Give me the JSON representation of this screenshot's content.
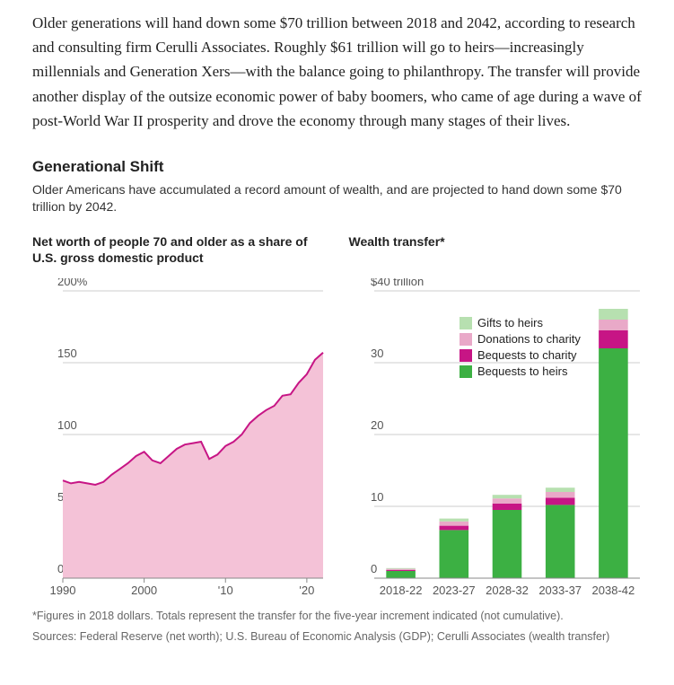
{
  "intro_text": "Older generations will hand down some $70 trillion between 2018 and 2042, according to research and consulting firm Cerulli Associates. Roughly $61 trillion will go to heirs—increasingly millennials and Generation Xers—with the balance going to philanthropy. The transfer will provide another display of the outsize economic power of baby boomers, who came of age during a wave of post-World War II prosperity and drove the economy through many stages of their lives.",
  "section": {
    "title": "Generational Shift",
    "sub": "Older Americans have accumulated a record amount of wealth, and are projected to hand down some $70 trillion by 2042."
  },
  "chart_left": {
    "type": "area-line",
    "title": "Net worth of people 70 and older as a share of U.S. gross domestic product",
    "x_axis": {
      "min": 1990,
      "max": 2022,
      "ticks": [
        1990,
        2000,
        2010,
        2020
      ],
      "tick_labels": [
        "1990",
        "2000",
        "'10",
        "'20"
      ]
    },
    "y_axis": {
      "min": 0,
      "max": 200,
      "ticks": [
        0,
        50,
        100,
        150,
        200
      ],
      "top_label": "200%"
    },
    "line_color": "#c71585",
    "fill_color": "#f4c2d7",
    "line_width": 2,
    "grid_color": "#cccccc",
    "background_color": "#ffffff",
    "series": [
      {
        "x": 1990,
        "y": 68
      },
      {
        "x": 1991,
        "y": 66
      },
      {
        "x": 1992,
        "y": 67
      },
      {
        "x": 1993,
        "y": 66
      },
      {
        "x": 1994,
        "y": 65
      },
      {
        "x": 1995,
        "y": 67
      },
      {
        "x": 1996,
        "y": 72
      },
      {
        "x": 1997,
        "y": 76
      },
      {
        "x": 1998,
        "y": 80
      },
      {
        "x": 1999,
        "y": 85
      },
      {
        "x": 2000,
        "y": 88
      },
      {
        "x": 2001,
        "y": 82
      },
      {
        "x": 2002,
        "y": 80
      },
      {
        "x": 2003,
        "y": 85
      },
      {
        "x": 2004,
        "y": 90
      },
      {
        "x": 2005,
        "y": 93
      },
      {
        "x": 2006,
        "y": 94
      },
      {
        "x": 2007,
        "y": 95
      },
      {
        "x": 2008,
        "y": 83
      },
      {
        "x": 2009,
        "y": 86
      },
      {
        "x": 2010,
        "y": 92
      },
      {
        "x": 2011,
        "y": 95
      },
      {
        "x": 2012,
        "y": 100
      },
      {
        "x": 2013,
        "y": 108
      },
      {
        "x": 2014,
        "y": 113
      },
      {
        "x": 2015,
        "y": 117
      },
      {
        "x": 2016,
        "y": 120
      },
      {
        "x": 2017,
        "y": 127
      },
      {
        "x": 2018,
        "y": 128
      },
      {
        "x": 2019,
        "y": 136
      },
      {
        "x": 2020,
        "y": 142
      },
      {
        "x": 2021,
        "y": 152
      },
      {
        "x": 2022,
        "y": 157
      }
    ]
  },
  "chart_right": {
    "type": "stacked-bar",
    "title": "Wealth transfer*",
    "x_axis": {
      "categories": [
        "2018-22",
        "2023-27",
        "2028-32",
        "2033-37",
        "2038-42"
      ]
    },
    "y_axis": {
      "min": 0,
      "max": 40,
      "ticks": [
        0,
        10,
        20,
        30,
        40
      ],
      "top_label": "$40 trillion"
    },
    "grid_color": "#cccccc",
    "background_color": "#ffffff",
    "bar_width": 0.55,
    "legend": [
      {
        "key": "gifts_heirs",
        "label": "Gifts to heirs",
        "color": "#b7e0b0"
      },
      {
        "key": "donations_charity",
        "label": "Donations to charity",
        "color": "#e9a9c8"
      },
      {
        "key": "bequests_charity",
        "label": "Bequests to charity",
        "color": "#c71585"
      },
      {
        "key": "bequests_heirs",
        "label": "Bequests to heirs",
        "color": "#3cb043"
      }
    ],
    "stack_order": [
      "bequests_heirs",
      "bequests_charity",
      "donations_charity",
      "gifts_heirs"
    ],
    "bars": [
      {
        "bequests_heirs": 1.0,
        "bequests_charity": 0.15,
        "donations_charity": 0.15,
        "gifts_heirs": 0.1
      },
      {
        "bequests_heirs": 6.7,
        "bequests_charity": 0.6,
        "donations_charity": 0.6,
        "gifts_heirs": 0.4
      },
      {
        "bequests_heirs": 9.5,
        "bequests_charity": 0.9,
        "donations_charity": 0.7,
        "gifts_heirs": 0.5
      },
      {
        "bequests_heirs": 10.2,
        "bequests_charity": 1.0,
        "donations_charity": 0.8,
        "gifts_heirs": 0.6
      },
      {
        "bequests_heirs": 32.0,
        "bequests_charity": 2.5,
        "donations_charity": 1.5,
        "gifts_heirs": 1.5
      }
    ]
  },
  "footnote1": "*Figures in 2018 dollars. Totals represent the transfer for the five-year increment indicated (not cumulative).",
  "footnote2": "Sources: Federal Reserve (net worth); U.S. Bureau of Economic Analysis (GDP); Cerulli Associates (wealth transfer)"
}
